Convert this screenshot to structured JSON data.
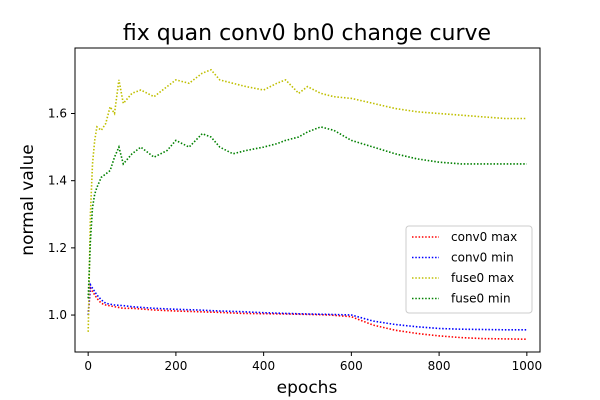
{
  "chart_data": {
    "type": "line",
    "title": "fix quan conv0 bn0 change curve",
    "xlabel": "epochs",
    "ylabel": "normal value",
    "xlim": [
      -30,
      1030
    ],
    "ylim": [
      0.89,
      1.795
    ],
    "xticks": [
      0,
      200,
      400,
      600,
      800,
      1000
    ],
    "yticks": [
      1.0,
      1.2,
      1.4,
      1.6
    ],
    "legend_position": "lower-right",
    "grid": false,
    "line_style": "dotted",
    "series": [
      {
        "name": "conv0 max",
        "color": "#ff0000",
        "x": [
          0,
          5,
          10,
          20,
          30,
          40,
          60,
          80,
          100,
          150,
          200,
          250,
          300,
          350,
          400,
          450,
          500,
          550,
          600,
          620,
          650,
          700,
          750,
          800,
          850,
          900,
          950,
          1000
        ],
        "values": [
          1.0,
          1.08,
          1.07,
          1.05,
          1.035,
          1.03,
          1.025,
          1.02,
          1.02,
          1.015,
          1.012,
          1.01,
          1.008,
          1.005,
          1.004,
          1.003,
          1.002,
          1.0,
          0.995,
          0.985,
          0.97,
          0.955,
          0.945,
          0.938,
          0.933,
          0.93,
          0.929,
          0.928
        ]
      },
      {
        "name": "conv0 min",
        "color": "#0000ff",
        "x": [
          0,
          5,
          10,
          20,
          30,
          40,
          60,
          80,
          100,
          150,
          200,
          250,
          300,
          350,
          400,
          450,
          500,
          550,
          600,
          620,
          650,
          700,
          750,
          800,
          850,
          900,
          950,
          1000
        ],
        "values": [
          1.0,
          1.09,
          1.08,
          1.06,
          1.045,
          1.035,
          1.03,
          1.028,
          1.025,
          1.02,
          1.017,
          1.015,
          1.012,
          1.01,
          1.007,
          1.005,
          1.003,
          1.002,
          1.0,
          0.993,
          0.982,
          0.972,
          0.965,
          0.96,
          0.958,
          0.957,
          0.956,
          0.956
        ]
      },
      {
        "name": "fuse0 max",
        "color": "#bfbf00",
        "x": [
          0,
          5,
          10,
          15,
          20,
          30,
          40,
          50,
          60,
          70,
          80,
          100,
          120,
          150,
          180,
          200,
          230,
          260,
          280,
          300,
          330,
          360,
          400,
          430,
          450,
          480,
          500,
          530,
          560,
          600,
          650,
          700,
          750,
          800,
          850,
          900,
          950,
          1000
        ],
        "values": [
          0.95,
          1.3,
          1.45,
          1.52,
          1.56,
          1.55,
          1.57,
          1.62,
          1.6,
          1.7,
          1.63,
          1.66,
          1.67,
          1.65,
          1.68,
          1.7,
          1.69,
          1.72,
          1.73,
          1.7,
          1.69,
          1.68,
          1.67,
          1.69,
          1.7,
          1.66,
          1.68,
          1.66,
          1.65,
          1.645,
          1.63,
          1.615,
          1.605,
          1.6,
          1.595,
          1.59,
          1.585,
          1.585
        ]
      },
      {
        "name": "fuse0 min",
        "color": "#008000",
        "x": [
          0,
          5,
          10,
          15,
          20,
          30,
          40,
          50,
          60,
          70,
          80,
          100,
          120,
          150,
          180,
          200,
          230,
          260,
          280,
          300,
          330,
          360,
          400,
          430,
          450,
          480,
          500,
          530,
          560,
          600,
          650,
          700,
          750,
          800,
          850,
          900,
          950,
          1000
        ],
        "values": [
          1.05,
          1.22,
          1.32,
          1.36,
          1.38,
          1.41,
          1.42,
          1.43,
          1.47,
          1.5,
          1.45,
          1.48,
          1.5,
          1.47,
          1.49,
          1.52,
          1.5,
          1.54,
          1.53,
          1.5,
          1.48,
          1.49,
          1.5,
          1.51,
          1.52,
          1.53,
          1.545,
          1.56,
          1.55,
          1.52,
          1.5,
          1.48,
          1.465,
          1.455,
          1.45,
          1.45,
          1.45,
          1.45
        ]
      }
    ]
  }
}
